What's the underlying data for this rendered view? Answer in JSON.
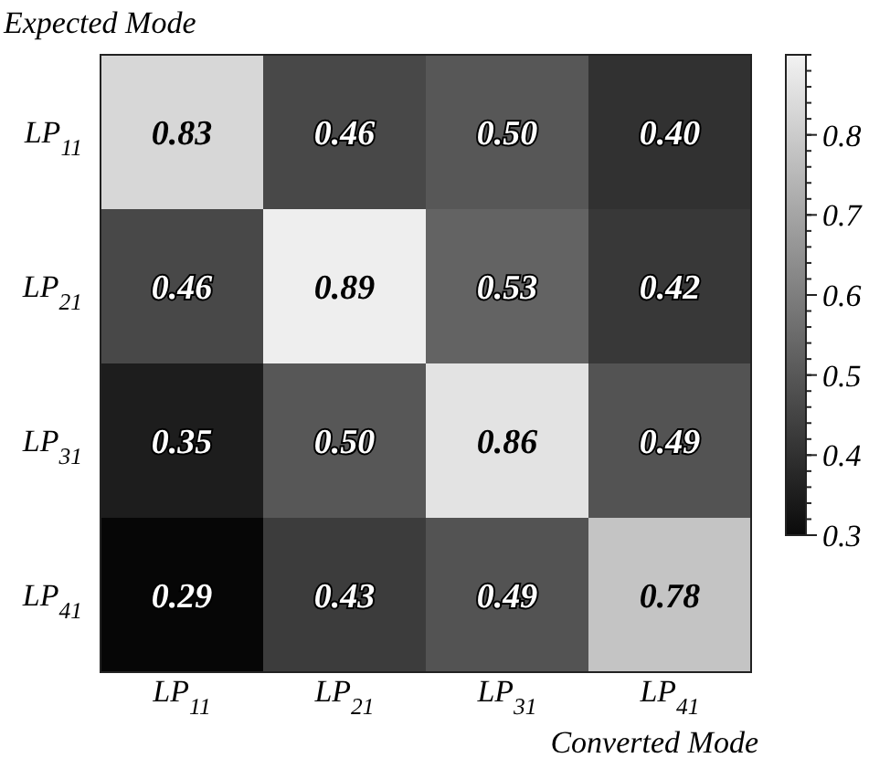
{
  "chart_data": {
    "type": "heatmap",
    "xlabel": "Converted Mode",
    "ylabel": "Expected Mode",
    "categories": [
      "LP$_{11}$",
      "LP$_{21}$",
      "LP$_{31}$",
      "LP$_{41}$"
    ],
    "y_categories": [
      "LP$_{11}$",
      "LP$_{21}$",
      "LP$_{31}$",
      "LP$_{41}$"
    ],
    "cells": [
      [
        0.83,
        0.46,
        0.5,
        0.4
      ],
      [
        0.46,
        0.89,
        0.53,
        0.42
      ],
      [
        0.35,
        0.5,
        0.86,
        0.49
      ],
      [
        0.29,
        0.43,
        0.49,
        0.78
      ]
    ],
    "cell_labels": [
      [
        "0.83",
        "0.46",
        "0.50",
        "0.40"
      ],
      [
        "0.46",
        "0.89",
        "0.53",
        "0.42"
      ],
      [
        "0.35",
        "0.50",
        "0.86",
        "0.49"
      ],
      [
        "0.29",
        "0.43",
        "0.49",
        "0.78"
      ]
    ],
    "clim": [
      0.3,
      0.9
    ],
    "cticks": [
      0.3,
      0.4,
      0.5,
      0.6,
      0.7,
      0.8
    ]
  }
}
